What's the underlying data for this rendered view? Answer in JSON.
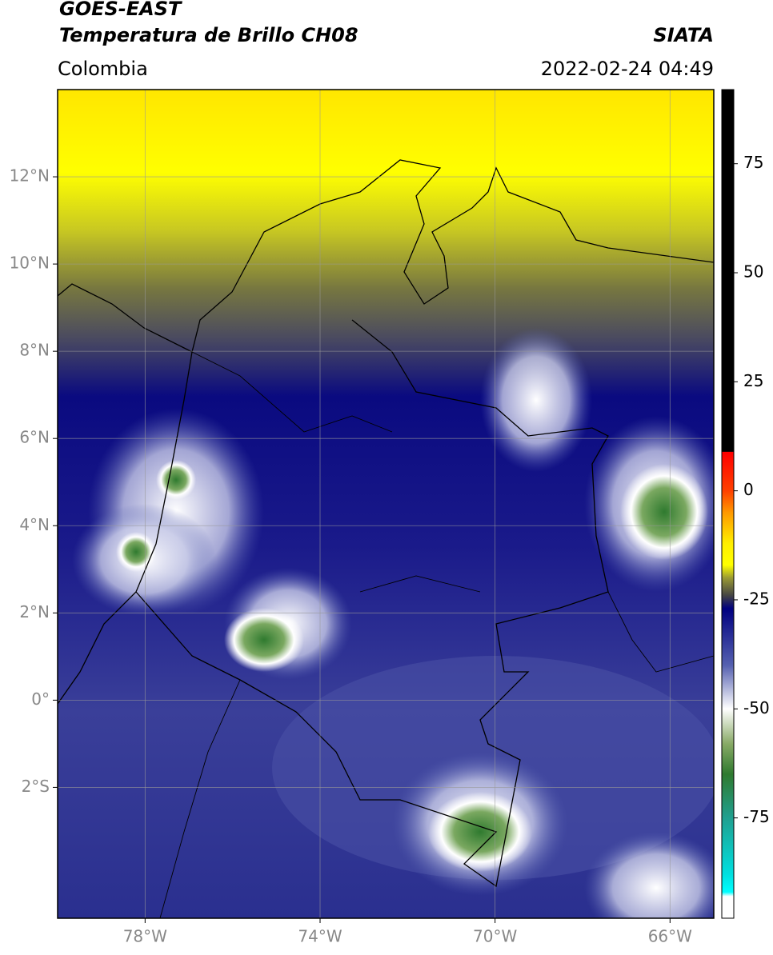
{
  "header": {
    "title": "GOES-EAST",
    "subtitle": "Temperatura de Brillo CH08",
    "source": "SIATA",
    "region": "Colombia",
    "datetime": "2022-02-24 04:49"
  },
  "map": {
    "xlim": [
      -80,
      -65
    ],
    "ylim": [
      -5,
      14
    ],
    "xticks": [
      {
        "value": -78,
        "label": "78°W"
      },
      {
        "value": -74,
        "label": "74°W"
      },
      {
        "value": -70,
        "label": "70°W"
      },
      {
        "value": -66,
        "label": "66°W"
      }
    ],
    "yticks": [
      {
        "value": 12,
        "label": "12°N"
      },
      {
        "value": 10,
        "label": "10°N"
      },
      {
        "value": 8,
        "label": "8°N"
      },
      {
        "value": 6,
        "label": "6°N"
      },
      {
        "value": 4,
        "label": "4°N"
      },
      {
        "value": 2,
        "label": "2°N"
      },
      {
        "value": 0,
        "label": "0°"
      },
      {
        "value": -2,
        "label": "2°S"
      }
    ],
    "grid": true
  },
  "colorbar": {
    "lim": [
      -98,
      92
    ],
    "ticks": [
      75,
      50,
      25,
      0,
      -25,
      -50,
      -75
    ],
    "stops": [
      {
        "value": 92,
        "color": "#000000"
      },
      {
        "value": 9,
        "color": "#000000"
      },
      {
        "value": 8.9,
        "color": "#ff0000"
      },
      {
        "value": 0,
        "color": "#ff4000"
      },
      {
        "value": -5,
        "color": "#ff9900"
      },
      {
        "value": -12,
        "color": "#ffee00"
      },
      {
        "value": -17,
        "color": "#ffff00"
      },
      {
        "value": -20,
        "color": "#999933"
      },
      {
        "value": -24,
        "color": "#444444"
      },
      {
        "value": -27,
        "color": "#000080"
      },
      {
        "value": -40,
        "color": "#5560b0"
      },
      {
        "value": -50,
        "color": "#ffffff"
      },
      {
        "value": -58,
        "color": "#88aa66"
      },
      {
        "value": -65,
        "color": "#2f7a2f"
      },
      {
        "value": -75,
        "color": "#20a090"
      },
      {
        "value": -88,
        "color": "#00e0e0"
      },
      {
        "value": -92,
        "color": "#00ffff"
      },
      {
        "value": -93,
        "color": "#ffffff"
      },
      {
        "value": -98,
        "color": "#ffffff"
      }
    ]
  }
}
